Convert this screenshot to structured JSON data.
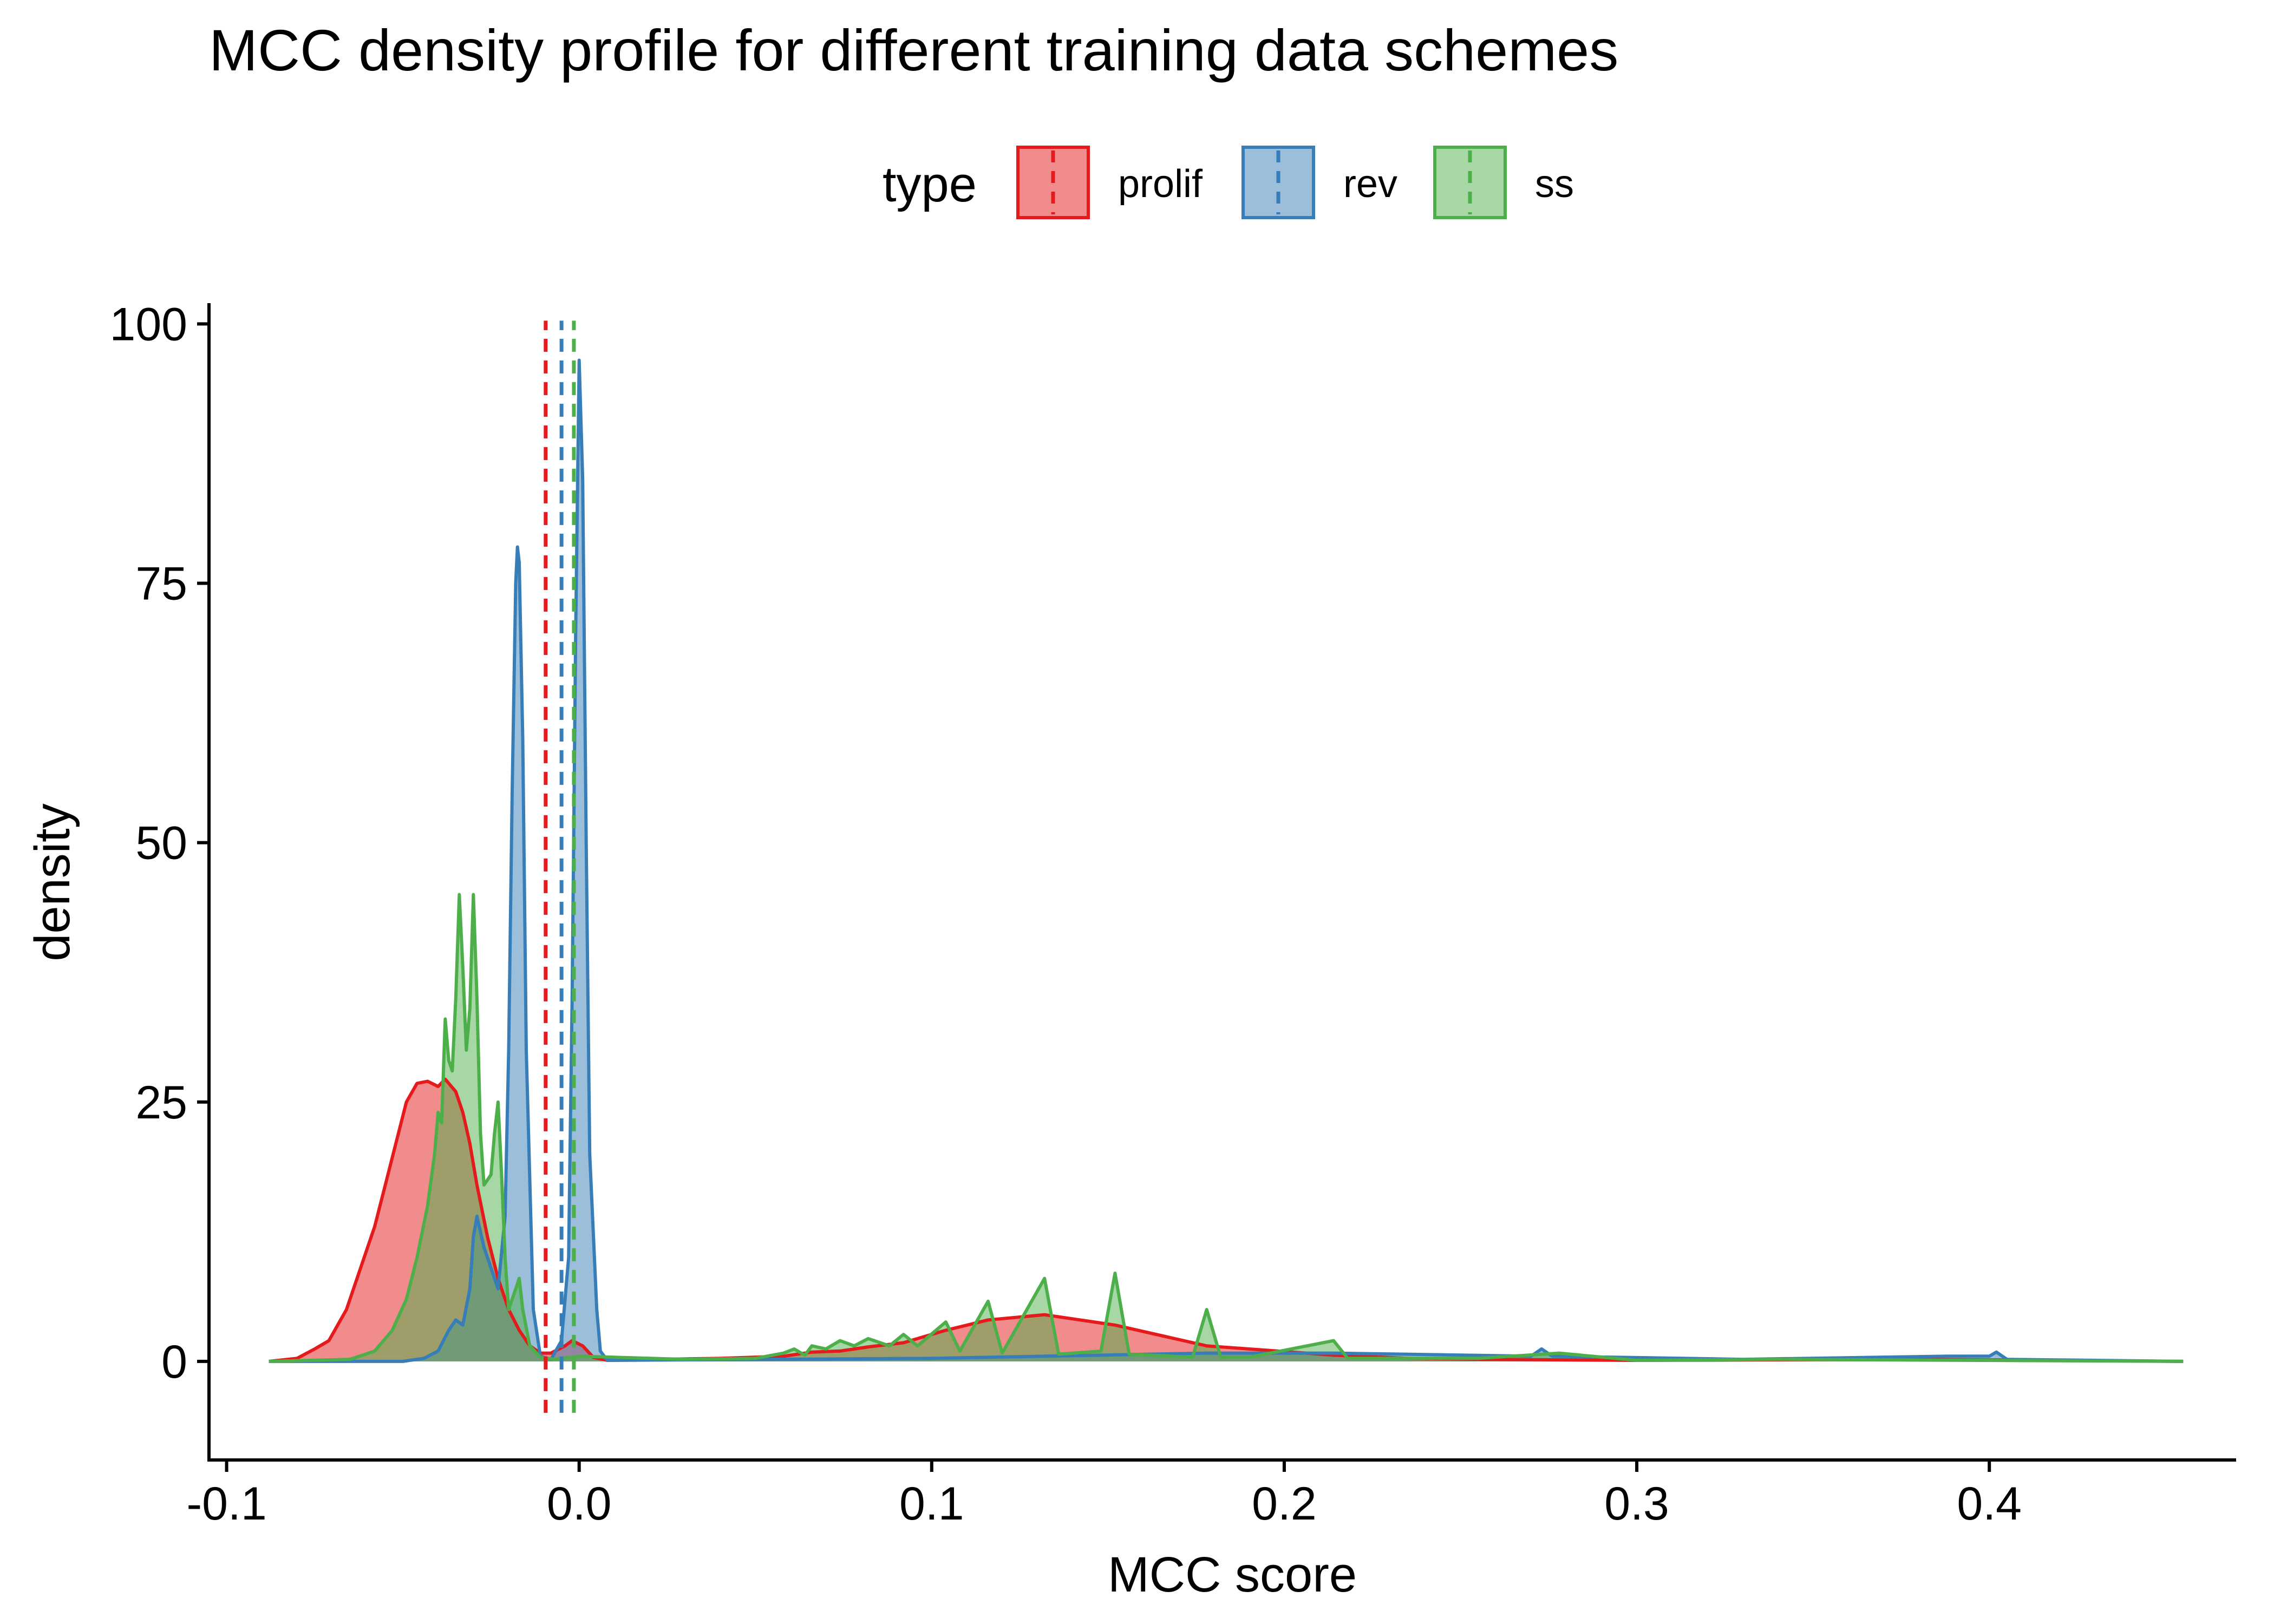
{
  "chart_data": {
    "type": "area",
    "title": "MCC density profile for different training data schemes",
    "xlabel": "MCC score",
    "ylabel": "density",
    "xlim": [
      -0.105,
      0.47
    ],
    "ylim": [
      -9.5,
      102
    ],
    "x_ticks": [
      -0.1,
      0.0,
      0.1,
      0.2,
      0.3,
      0.4
    ],
    "x_tick_labels": [
      "-0.1",
      "0.0",
      "0.1",
      "0.2",
      "0.3",
      "0.4"
    ],
    "y_ticks": [
      0,
      25,
      50,
      75,
      100
    ],
    "y_tick_labels": [
      "0",
      "25",
      "50",
      "75",
      "100"
    ],
    "grid": false,
    "legend": {
      "title": "type",
      "position": "top"
    },
    "series": [
      {
        "name": "prolif",
        "color": "#E41A1C",
        "mean": -0.0095,
        "points": [
          [
            -0.088,
            0
          ],
          [
            -0.08,
            0.3
          ],
          [
            -0.075,
            1.2
          ],
          [
            -0.071,
            2
          ],
          [
            -0.066,
            5
          ],
          [
            -0.062,
            9
          ],
          [
            -0.058,
            13
          ],
          [
            -0.055,
            17
          ],
          [
            -0.052,
            21
          ],
          [
            -0.049,
            25
          ],
          [
            -0.046,
            26.8
          ],
          [
            -0.043,
            27
          ],
          [
            -0.04,
            26.5
          ],
          [
            -0.038,
            27.2
          ],
          [
            -0.035,
            26
          ],
          [
            -0.033,
            24
          ],
          [
            -0.031,
            21
          ],
          [
            -0.029,
            17
          ],
          [
            -0.026,
            12
          ],
          [
            -0.023,
            8
          ],
          [
            -0.02,
            5
          ],
          [
            -0.017,
            3
          ],
          [
            -0.014,
            1.5
          ],
          [
            -0.011,
            0.8
          ],
          [
            -0.008,
            0.8
          ],
          [
            -0.004,
            1.5
          ],
          [
            -0.002,
            2
          ],
          [
            0.001,
            1.5
          ],
          [
            0.004,
            0.4
          ],
          [
            0.008,
            0.1
          ],
          [
            0.04,
            0.3
          ],
          [
            0.058,
            0.5
          ],
          [
            0.066,
            0.9
          ],
          [
            0.074,
            1
          ],
          [
            0.082,
            1.4
          ],
          [
            0.092,
            1.8
          ],
          [
            0.104,
            3
          ],
          [
            0.116,
            4
          ],
          [
            0.132,
            4.5
          ],
          [
            0.152,
            3.5
          ],
          [
            0.178,
            1.5
          ],
          [
            0.214,
            0.6
          ],
          [
            0.235,
            0.3
          ],
          [
            0.255,
            0.2
          ],
          [
            0.3,
            0.1
          ],
          [
            0.38,
            0.2
          ],
          [
            0.455,
            0
          ]
        ]
      },
      {
        "name": "rev",
        "color": "#377EB8",
        "mean": -0.005,
        "points": [
          [
            -0.088,
            0
          ],
          [
            -0.05,
            0
          ],
          [
            -0.044,
            0.3
          ],
          [
            -0.04,
            1
          ],
          [
            -0.037,
            3
          ],
          [
            -0.035,
            4
          ],
          [
            -0.033,
            3.5
          ],
          [
            -0.031,
            7
          ],
          [
            -0.03,
            12
          ],
          [
            -0.029,
            14
          ],
          [
            -0.027,
            11
          ],
          [
            -0.025,
            9
          ],
          [
            -0.023,
            7
          ],
          [
            -0.021,
            14
          ],
          [
            -0.02,
            30
          ],
          [
            -0.019,
            55
          ],
          [
            -0.018,
            75
          ],
          [
            -0.0175,
            78.5
          ],
          [
            -0.017,
            77
          ],
          [
            -0.016,
            60
          ],
          [
            -0.015,
            30
          ],
          [
            -0.013,
            5
          ],
          [
            -0.011,
            0.5
          ],
          [
            -0.008,
            0.2
          ],
          [
            -0.005,
            2
          ],
          [
            -0.003,
            10
          ],
          [
            -0.002,
            35
          ],
          [
            -0.001,
            70
          ],
          [
            0.0,
            96.5
          ],
          [
            0.001,
            85
          ],
          [
            0.002,
            50
          ],
          [
            0.003,
            20
          ],
          [
            0.005,
            5
          ],
          [
            0.006,
            1
          ],
          [
            0.008,
            0.1
          ],
          [
            0.1,
            0.3
          ],
          [
            0.132,
            0.5
          ],
          [
            0.178,
            0.8
          ],
          [
            0.214,
            0.8
          ],
          [
            0.27,
            0.5
          ],
          [
            0.273,
            1.2
          ],
          [
            0.276,
            0.5
          ],
          [
            0.33,
            0.2
          ],
          [
            0.388,
            0.5
          ],
          [
            0.4,
            0.5
          ],
          [
            0.402,
            0.9
          ],
          [
            0.405,
            0.2
          ],
          [
            0.455,
            0
          ]
        ]
      },
      {
        "name": "ss",
        "color": "#4DAF4A",
        "mean": -0.0015,
        "points": [
          [
            -0.088,
            0
          ],
          [
            -0.065,
            0.2
          ],
          [
            -0.058,
            1
          ],
          [
            -0.053,
            3
          ],
          [
            -0.049,
            6
          ],
          [
            -0.046,
            10
          ],
          [
            -0.043,
            15
          ],
          [
            -0.041,
            20
          ],
          [
            -0.04,
            24
          ],
          [
            -0.039,
            23
          ],
          [
            -0.038,
            33
          ],
          [
            -0.037,
            29
          ],
          [
            -0.036,
            28
          ],
          [
            -0.035,
            35
          ],
          [
            -0.034,
            45
          ],
          [
            -0.033,
            38
          ],
          [
            -0.032,
            30
          ],
          [
            -0.031,
            34
          ],
          [
            -0.03,
            45
          ],
          [
            -0.029,
            35
          ],
          [
            -0.028,
            22
          ],
          [
            -0.027,
            17
          ],
          [
            -0.025,
            18
          ],
          [
            -0.024,
            22
          ],
          [
            -0.023,
            25
          ],
          [
            -0.022,
            18
          ],
          [
            -0.021,
            10
          ],
          [
            -0.02,
            5
          ],
          [
            -0.018,
            7
          ],
          [
            -0.017,
            8
          ],
          [
            -0.016,
            5
          ],
          [
            -0.014,
            1.5
          ],
          [
            -0.011,
            0.4
          ],
          [
            -0.007,
            0.2
          ],
          [
            0.0,
            0.5
          ],
          [
            0.03,
            0.2
          ],
          [
            0.05,
            0.3
          ],
          [
            0.058,
            0.8
          ],
          [
            0.061,
            1.2
          ],
          [
            0.064,
            0.6
          ],
          [
            0.066,
            1.5
          ],
          [
            0.07,
            1.2
          ],
          [
            0.074,
            2
          ],
          [
            0.078,
            1.5
          ],
          [
            0.082,
            2.2
          ],
          [
            0.088,
            1.5
          ],
          [
            0.092,
            2.6
          ],
          [
            0.096,
            1.5
          ],
          [
            0.104,
            3.8
          ],
          [
            0.108,
            1
          ],
          [
            0.116,
            5.8
          ],
          [
            0.12,
            0.8
          ],
          [
            0.132,
            8
          ],
          [
            0.136,
            0.7
          ],
          [
            0.148,
            1
          ],
          [
            0.152,
            8.5
          ],
          [
            0.156,
            0.7
          ],
          [
            0.174,
            0.4
          ],
          [
            0.178,
            5
          ],
          [
            0.182,
            0.4
          ],
          [
            0.19,
            0.4
          ],
          [
            0.214,
            2
          ],
          [
            0.218,
            0.3
          ],
          [
            0.255,
            0.3
          ],
          [
            0.278,
            0.8
          ],
          [
            0.3,
            0.1
          ],
          [
            0.34,
            0.2
          ],
          [
            0.455,
            0
          ]
        ]
      }
    ]
  }
}
